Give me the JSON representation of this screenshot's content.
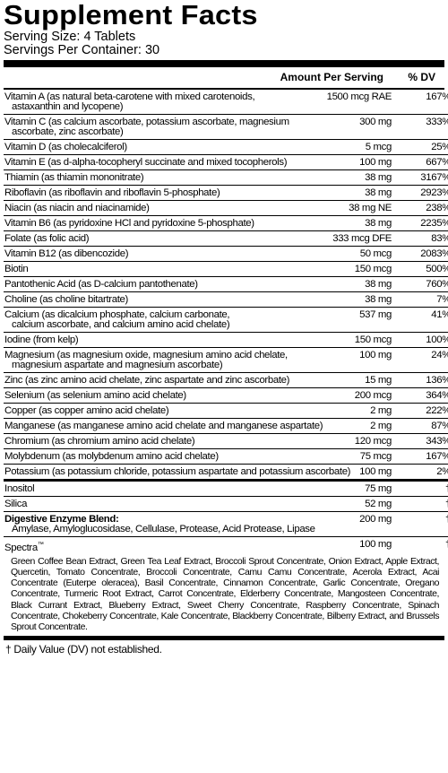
{
  "title": "Supplement Facts",
  "serving_size": "Serving Size: 4 Tablets",
  "servings_per_container": "Servings Per Container: 30",
  "headers": {
    "amount": "Amount Per Serving",
    "dv": "% DV"
  },
  "rows": [
    {
      "name": "Vitamin A (as natural beta-carotene with mixed carotenoids,",
      "name2": "astaxanthin and lycopene)",
      "amount": "1500 mcg RAE",
      "dv": "167%"
    },
    {
      "name": "Vitamin C (as calcium ascorbate, potassium ascorbate, magnesium",
      "name2": "ascorbate, zinc ascorbate)",
      "amount": "300 mg",
      "dv": "333%"
    },
    {
      "name": "Vitamin D (as cholecalciferol)",
      "amount": "5 mcg",
      "dv": "25%"
    },
    {
      "name": "Vitamin E (as d-alpha-tocopheryl succinate and mixed tocopherols)",
      "amount": "100 mg",
      "dv": "667%"
    },
    {
      "name": "Thiamin (as thiamin mononitrate)",
      "amount": "38 mg",
      "dv": "3167%"
    },
    {
      "name": "Riboflavin (as riboflavin and riboflavin 5-phosphate)",
      "amount": "38 mg",
      "dv": "2923%"
    },
    {
      "name": "Niacin (as niacin and niacinamide)",
      "amount": "38 mg NE",
      "dv": "238%"
    },
    {
      "name": "Vitamin B6 (as pyridoxine HCl and pyridoxine 5-phosphate)",
      "amount": "38 mg",
      "dv": "2235%"
    },
    {
      "name": "Folate (as folic acid)",
      "amount": "333 mcg DFE",
      "dv": "83%"
    },
    {
      "name": "Vitamin B12 (as dibencozide)",
      "amount": "50 mcg",
      "dv": "2083%"
    },
    {
      "name": "Biotin",
      "amount": "150 mcg",
      "dv": "500%"
    },
    {
      "name": "Pantothenic Acid (as D-calcium pantothenate)",
      "amount": "38 mg",
      "dv": "760%"
    },
    {
      "name": "Choline (as choline bitartrate)",
      "amount": "38 mg",
      "dv": "7%"
    },
    {
      "name": "Calcium (as dicalcium phosphate, calcium carbonate,",
      "name2": "calcium ascorbate, and calcium amino acid chelate)",
      "amount": "537 mg",
      "dv": "41%"
    },
    {
      "name": "Iodine (from kelp)",
      "amount": "150 mcg",
      "dv": "100%"
    },
    {
      "name": "Magnesium (as magnesium oxide, magnesium amino acid chelate,",
      "name2": "magnesium aspartate and magnesium ascorbate)",
      "amount": "100 mg",
      "dv": "24%"
    },
    {
      "name": "Zinc (as zinc amino acid chelate, zinc aspartate and zinc ascorbate)",
      "amount": "15 mg",
      "dv": "136%"
    },
    {
      "name": "Selenium (as selenium amino acid chelate)",
      "amount": "200 mcg",
      "dv": "364%"
    },
    {
      "name": "Copper (as copper amino acid chelate)",
      "amount": "2 mg",
      "dv": "222%"
    },
    {
      "name": "Manganese (as manganese amino acid chelate and manganese aspartate)",
      "amount": "2 mg",
      "dv": "87%"
    },
    {
      "name": "Chromium (as chromium amino acid chelate)",
      "amount": "120 mcg",
      "dv": "343%"
    },
    {
      "name": "Molybdenum (as molybdenum amino acid chelate)",
      "amount": "75 mcg",
      "dv": "167%"
    },
    {
      "name": "Potassium (as potassium chloride, potassium aspartate and potassium ascorbate)",
      "amount": "100 mg",
      "dv": "2%"
    }
  ],
  "other": [
    {
      "name": "Inositol",
      "amount": "75 mg",
      "dv": "†"
    },
    {
      "name": "Silica",
      "amount": "52 mg",
      "dv": "†"
    }
  ],
  "enzyme": {
    "name": "Digestive Enzyme Blend:",
    "amount": "200 mg",
    "dv": "†",
    "list": "Amylase, Amyloglucosidase, Cellulase, Protease, Acid Protease, Lipase"
  },
  "spectra": {
    "name": "Spectra",
    "tm": "™",
    "amount": "100 mg",
    "dv": "†",
    "list": "Green Coffee Bean Extract, Green Tea Leaf Extract, Broccoli Sprout Concentrate, Onion Extract, Apple Extract, Quercetin, Tomato Concentrate, Broccoli Concentrate, Camu Camu Concentrate, Acerola Extract, Acai Concentrate (Euterpe oleracea), Basil Concentrate, Cinnamon Concentrate, Garlic Concentrate, Oregano Concentrate, Turmeric Root Extract, Carrot Concentrate, Elderberry Concentrate, Mangosteen Concentrate, Black Currant Extract, Blueberry Extract, Sweet Cherry Concentrate, Raspberry Concentrate, Spinach Concentrate, Chokeberry Concentrate, Kale Concentrate, Blackberry Concentrate, Bilberry Extract, and Brussels Sprout Concentrate."
  },
  "footnote": "† Daily Value (DV) not established."
}
